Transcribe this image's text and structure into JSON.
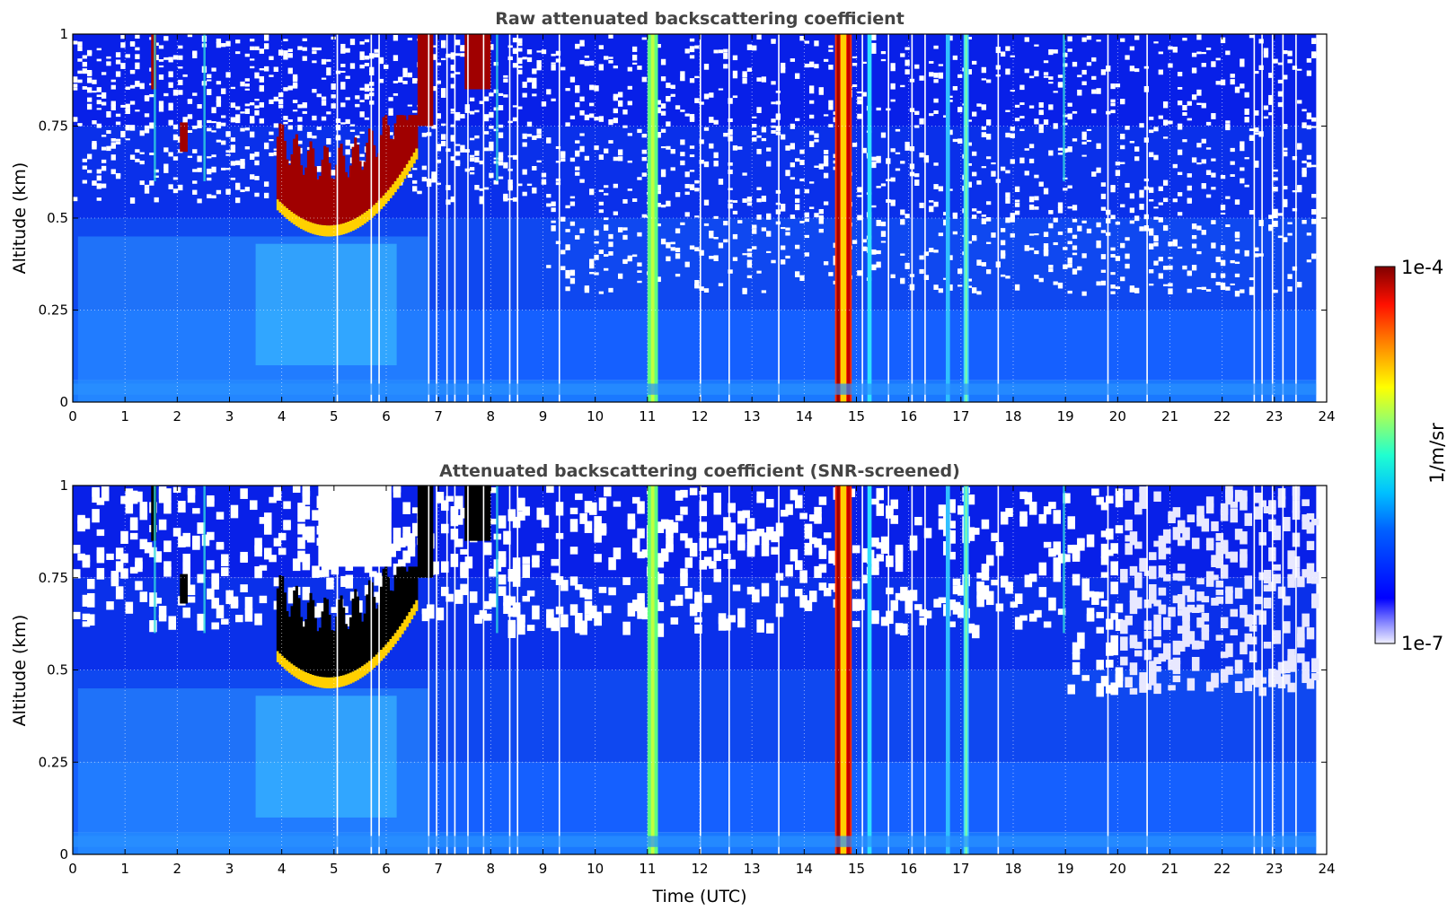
{
  "figure": {
    "xlabel": "Time (UTC)",
    "colorbar": {
      "label": "1/m/sr",
      "min_label": "1e-7",
      "max_label": "1e-4",
      "scale": "log",
      "range": [
        1e-07,
        0.0001
      ],
      "colormap": "jet"
    }
  },
  "chart_data": [
    {
      "type": "heatmap",
      "title": "Raw attenuated backscattering coefficient",
      "xlabel": "",
      "ylabel": "Altitude (km)",
      "xlim": [
        0,
        24
      ],
      "ylim": [
        0,
        1
      ],
      "x_ticks": [
        "0",
        "1",
        "2",
        "3",
        "4",
        "5",
        "6",
        "7",
        "8",
        "9",
        "10",
        "11",
        "12",
        "13",
        "14",
        "15",
        "16",
        "17",
        "18",
        "19",
        "20",
        "21",
        "22",
        "23",
        "24"
      ],
      "y_ticks": [
        {
          "value": 0,
          "label": "0"
        },
        {
          "value": 0.25,
          "label": "0.25"
        },
        {
          "value": 0.5,
          "label": "0.5"
        },
        {
          "value": 0.75,
          "label": "0.75"
        },
        {
          "value": 1,
          "label": "1"
        }
      ],
      "grid": true,
      "data_end_hour": 23.8,
      "features": {
        "cloud_layer": {
          "start": 3.9,
          "end": 6.6,
          "base_min_km": 0.45,
          "description": "red backscatter region"
        },
        "precipitation_columns_hours": [
          11.1,
          14.75,
          15.25,
          16.8,
          17.1
        ],
        "strong_columns_hours": [
          14.75
        ]
      }
    },
    {
      "type": "heatmap",
      "title": "Attenuated backscattering coefficient (SNR-screened)",
      "xlabel": "Time (UTC)",
      "ylabel": "Altitude (km)",
      "xlim": [
        0,
        24
      ],
      "ylim": [
        0,
        1
      ],
      "x_ticks": [
        "0",
        "1",
        "2",
        "3",
        "4",
        "5",
        "6",
        "7",
        "8",
        "9",
        "10",
        "11",
        "12",
        "13",
        "14",
        "15",
        "16",
        "17",
        "18",
        "19",
        "20",
        "21",
        "22",
        "23",
        "24"
      ],
      "y_ticks": [
        {
          "value": 0,
          "label": "0"
        },
        {
          "value": 0.25,
          "label": "0.25"
        },
        {
          "value": 0.5,
          "label": "0.5"
        },
        {
          "value": 0.75,
          "label": "0.75"
        },
        {
          "value": 1,
          "label": "1"
        }
      ],
      "grid": true,
      "data_end_hour": 23.8
    }
  ]
}
